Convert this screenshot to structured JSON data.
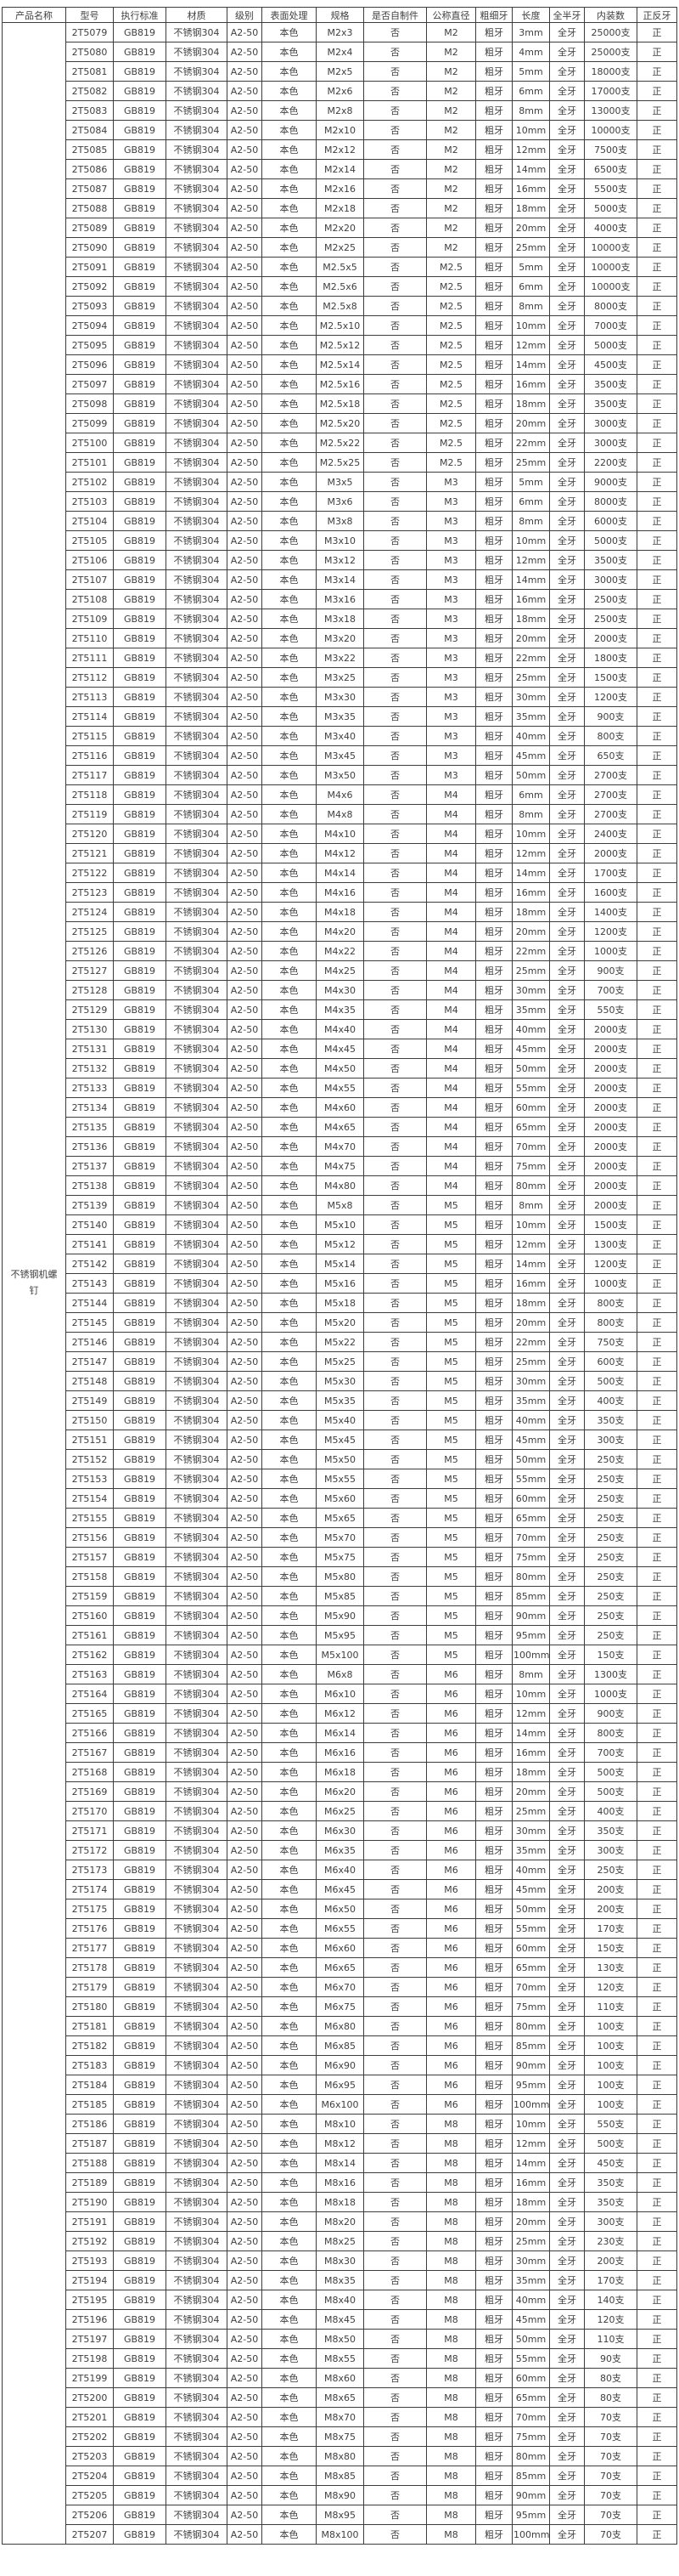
{
  "table": {
    "product_name": "不锈钢机螺钉",
    "headers": [
      "产品名称",
      "型号",
      "执行标准",
      "材质",
      "级别",
      "表面处理",
      "规格",
      "是否自制件",
      "公称直径",
      "粗细牙",
      "长度",
      "全半牙",
      "内装数",
      "正反牙"
    ],
    "constants": {
      "standard": "GB819",
      "material": "不锈钢304",
      "grade": "A2-50",
      "surface": "本色",
      "self_tapping": "否",
      "thread_pitch": "粗牙",
      "thread_coverage": "全牙",
      "direction": "正"
    },
    "rows": [
      [
        "2T5079",
        "M2x3",
        "M2",
        "3mm",
        "25000支"
      ],
      [
        "2T5080",
        "M2x4",
        "M2",
        "4mm",
        "25000支"
      ],
      [
        "2T5081",
        "M2x5",
        "M2",
        "5mm",
        "18000支"
      ],
      [
        "2T5082",
        "M2x6",
        "M2",
        "6mm",
        "17000支"
      ],
      [
        "2T5083",
        "M2x8",
        "M2",
        "8mm",
        "13000支"
      ],
      [
        "2T5084",
        "M2x10",
        "M2",
        "10mm",
        "10000支"
      ],
      [
        "2T5085",
        "M2x12",
        "M2",
        "12mm",
        "7500支"
      ],
      [
        "2T5086",
        "M2x14",
        "M2",
        "14mm",
        "6500支"
      ],
      [
        "2T5087",
        "M2x16",
        "M2",
        "16mm",
        "5500支"
      ],
      [
        "2T5088",
        "M2x18",
        "M2",
        "18mm",
        "5000支"
      ],
      [
        "2T5089",
        "M2x20",
        "M2",
        "20mm",
        "4000支"
      ],
      [
        "2T5090",
        "M2x25",
        "M2",
        "25mm",
        "10000支"
      ],
      [
        "2T5091",
        "M2.5x5",
        "M2.5",
        "5mm",
        "10000支"
      ],
      [
        "2T5092",
        "M2.5x6",
        "M2.5",
        "6mm",
        "10000支"
      ],
      [
        "2T5093",
        "M2.5x8",
        "M2.5",
        "8mm",
        "8000支"
      ],
      [
        "2T5094",
        "M2.5x10",
        "M2.5",
        "10mm",
        "7000支"
      ],
      [
        "2T5095",
        "M2.5x12",
        "M2.5",
        "12mm",
        "5000支"
      ],
      [
        "2T5096",
        "M2.5x14",
        "M2.5",
        "14mm",
        "4500支"
      ],
      [
        "2T5097",
        "M2.5x16",
        "M2.5",
        "16mm",
        "3500支"
      ],
      [
        "2T5098",
        "M2.5x18",
        "M2.5",
        "18mm",
        "3500支"
      ],
      [
        "2T5099",
        "M2.5x20",
        "M2.5",
        "20mm",
        "3000支"
      ],
      [
        "2T5100",
        "M2.5x22",
        "M2.5",
        "22mm",
        "3000支"
      ],
      [
        "2T5101",
        "M2.5x25",
        "M2.5",
        "25mm",
        "2200支"
      ],
      [
        "2T5102",
        "M3x5",
        "M3",
        "5mm",
        "9000支"
      ],
      [
        "2T5103",
        "M3x6",
        "M3",
        "6mm",
        "8000支"
      ],
      [
        "2T5104",
        "M3x8",
        "M3",
        "8mm",
        "6000支"
      ],
      [
        "2T5105",
        "M3x10",
        "M3",
        "10mm",
        "5000支"
      ],
      [
        "2T5106",
        "M3x12",
        "M3",
        "12mm",
        "3500支"
      ],
      [
        "2T5107",
        "M3x14",
        "M3",
        "14mm",
        "3000支"
      ],
      [
        "2T5108",
        "M3x16",
        "M3",
        "16mm",
        "2500支"
      ],
      [
        "2T5109",
        "M3x18",
        "M3",
        "18mm",
        "2500支"
      ],
      [
        "2T5110",
        "M3x20",
        "M3",
        "20mm",
        "2000支"
      ],
      [
        "2T5111",
        "M3x22",
        "M3",
        "22mm",
        "1800支"
      ],
      [
        "2T5112",
        "M3x25",
        "M3",
        "25mm",
        "1500支"
      ],
      [
        "2T5113",
        "M3x30",
        "M3",
        "30mm",
        "1200支"
      ],
      [
        "2T5114",
        "M3x35",
        "M3",
        "35mm",
        "900支"
      ],
      [
        "2T5115",
        "M3x40",
        "M3",
        "40mm",
        "800支"
      ],
      [
        "2T5116",
        "M3x45",
        "M3",
        "45mm",
        "650支"
      ],
      [
        "2T5117",
        "M3x50",
        "M3",
        "50mm",
        "2700支"
      ],
      [
        "2T5118",
        "M4x6",
        "M4",
        "6mm",
        "2700支"
      ],
      [
        "2T5119",
        "M4x8",
        "M4",
        "8mm",
        "2700支"
      ],
      [
        "2T5120",
        "M4x10",
        "M4",
        "10mm",
        "2400支"
      ],
      [
        "2T5121",
        "M4x12",
        "M4",
        "12mm",
        "2000支"
      ],
      [
        "2T5122",
        "M4x14",
        "M4",
        "14mm",
        "1700支"
      ],
      [
        "2T5123",
        "M4x16",
        "M4",
        "16mm",
        "1600支"
      ],
      [
        "2T5124",
        "M4x18",
        "M4",
        "18mm",
        "1400支"
      ],
      [
        "2T5125",
        "M4x20",
        "M4",
        "20mm",
        "1200支"
      ],
      [
        "2T5126",
        "M4x22",
        "M4",
        "22mm",
        "1000支"
      ],
      [
        "2T5127",
        "M4x25",
        "M4",
        "25mm",
        "900支"
      ],
      [
        "2T5128",
        "M4x30",
        "M4",
        "30mm",
        "700支"
      ],
      [
        "2T5129",
        "M4x35",
        "M4",
        "35mm",
        "550支"
      ],
      [
        "2T5130",
        "M4x40",
        "M4",
        "40mm",
        "2000支"
      ],
      [
        "2T5131",
        "M4x45",
        "M4",
        "45mm",
        "2000支"
      ],
      [
        "2T5132",
        "M4x50",
        "M4",
        "50mm",
        "2000支"
      ],
      [
        "2T5133",
        "M4x55",
        "M4",
        "55mm",
        "2000支"
      ],
      [
        "2T5134",
        "M4x60",
        "M4",
        "60mm",
        "2000支"
      ],
      [
        "2T5135",
        "M4x65",
        "M4",
        "65mm",
        "2000支"
      ],
      [
        "2T5136",
        "M4x70",
        "M4",
        "70mm",
        "2000支"
      ],
      [
        "2T5137",
        "M4x75",
        "M4",
        "75mm",
        "2000支"
      ],
      [
        "2T5138",
        "M4x80",
        "M4",
        "80mm",
        "2000支"
      ],
      [
        "2T5139",
        "M5x8",
        "M5",
        "8mm",
        "2000支"
      ],
      [
        "2T5140",
        "M5x10",
        "M5",
        "10mm",
        "1500支"
      ],
      [
        "2T5141",
        "M5x12",
        "M5",
        "12mm",
        "1300支"
      ],
      [
        "2T5142",
        "M5x14",
        "M5",
        "14mm",
        "1200支"
      ],
      [
        "2T5143",
        "M5x16",
        "M5",
        "16mm",
        "1000支"
      ],
      [
        "2T5144",
        "M5x18",
        "M5",
        "18mm",
        "800支"
      ],
      [
        "2T5145",
        "M5x20",
        "M5",
        "20mm",
        "800支"
      ],
      [
        "2T5146",
        "M5x22",
        "M5",
        "22mm",
        "750支"
      ],
      [
        "2T5147",
        "M5x25",
        "M5",
        "25mm",
        "600支"
      ],
      [
        "2T5148",
        "M5x30",
        "M5",
        "30mm",
        "500支"
      ],
      [
        "2T5149",
        "M5x35",
        "M5",
        "35mm",
        "400支"
      ],
      [
        "2T5150",
        "M5x40",
        "M5",
        "40mm",
        "350支"
      ],
      [
        "2T5151",
        "M5x45",
        "M5",
        "45mm",
        "300支"
      ],
      [
        "2T5152",
        "M5x50",
        "M5",
        "50mm",
        "250支"
      ],
      [
        "2T5153",
        "M5x55",
        "M5",
        "55mm",
        "250支"
      ],
      [
        "2T5154",
        "M5x60",
        "M5",
        "60mm",
        "250支"
      ],
      [
        "2T5155",
        "M5x65",
        "M5",
        "65mm",
        "250支"
      ],
      [
        "2T5156",
        "M5x70",
        "M5",
        "70mm",
        "250支"
      ],
      [
        "2T5157",
        "M5x75",
        "M5",
        "75mm",
        "250支"
      ],
      [
        "2T5158",
        "M5x80",
        "M5",
        "80mm",
        "250支"
      ],
      [
        "2T5159",
        "M5x85",
        "M5",
        "85mm",
        "250支"
      ],
      [
        "2T5160",
        "M5x90",
        "M5",
        "90mm",
        "250支"
      ],
      [
        "2T5161",
        "M5x95",
        "M5",
        "95mm",
        "250支"
      ],
      [
        "2T5162",
        "M5x100",
        "M5",
        "100mm",
        "150支"
      ],
      [
        "2T5163",
        "M6x8",
        "M6",
        "8mm",
        "1300支"
      ],
      [
        "2T5164",
        "M6x10",
        "M6",
        "10mm",
        "1000支"
      ],
      [
        "2T5165",
        "M6x12",
        "M6",
        "12mm",
        "900支"
      ],
      [
        "2T5166",
        "M6x14",
        "M6",
        "14mm",
        "800支"
      ],
      [
        "2T5167",
        "M6x16",
        "M6",
        "16mm",
        "700支"
      ],
      [
        "2T5168",
        "M6x18",
        "M6",
        "18mm",
        "500支"
      ],
      [
        "2T5169",
        "M6x20",
        "M6",
        "20mm",
        "500支"
      ],
      [
        "2T5170",
        "M6x25",
        "M6",
        "25mm",
        "400支"
      ],
      [
        "2T5171",
        "M6x30",
        "M6",
        "30mm",
        "350支"
      ],
      [
        "2T5172",
        "M6x35",
        "M6",
        "35mm",
        "300支"
      ],
      [
        "2T5173",
        "M6x40",
        "M6",
        "40mm",
        "250支"
      ],
      [
        "2T5174",
        "M6x45",
        "M6",
        "45mm",
        "200支"
      ],
      [
        "2T5175",
        "M6x50",
        "M6",
        "50mm",
        "200支"
      ],
      [
        "2T5176",
        "M6x55",
        "M6",
        "55mm",
        "170支"
      ],
      [
        "2T5177",
        "M6x60",
        "M6",
        "60mm",
        "150支"
      ],
      [
        "2T5178",
        "M6x65",
        "M6",
        "65mm",
        "130支"
      ],
      [
        "2T5179",
        "M6x70",
        "M6",
        "70mm",
        "120支"
      ],
      [
        "2T5180",
        "M6x75",
        "M6",
        "75mm",
        "110支"
      ],
      [
        "2T5181",
        "M6x80",
        "M6",
        "80mm",
        "100支"
      ],
      [
        "2T5182",
        "M6x85",
        "M6",
        "85mm",
        "100支"
      ],
      [
        "2T5183",
        "M6x90",
        "M6",
        "90mm",
        "100支"
      ],
      [
        "2T5184",
        "M6x95",
        "M6",
        "95mm",
        "100支"
      ],
      [
        "2T5185",
        "M6x100",
        "M6",
        "100mm",
        "100支"
      ],
      [
        "2T5186",
        "M8x10",
        "M8",
        "10mm",
        "550支"
      ],
      [
        "2T5187",
        "M8x12",
        "M8",
        "12mm",
        "500支"
      ],
      [
        "2T5188",
        "M8x14",
        "M8",
        "14mm",
        "450支"
      ],
      [
        "2T5189",
        "M8x16",
        "M8",
        "16mm",
        "350支"
      ],
      [
        "2T5190",
        "M8x18",
        "M8",
        "18mm",
        "350支"
      ],
      [
        "2T5191",
        "M8x20",
        "M8",
        "20mm",
        "300支"
      ],
      [
        "2T5192",
        "M8x25",
        "M8",
        "25mm",
        "230支"
      ],
      [
        "2T5193",
        "M8x30",
        "M8",
        "30mm",
        "200支"
      ],
      [
        "2T5194",
        "M8x35",
        "M8",
        "35mm",
        "170支"
      ],
      [
        "2T5195",
        "M8x40",
        "M8",
        "40mm",
        "140支"
      ],
      [
        "2T5196",
        "M8x45",
        "M8",
        "45mm",
        "120支"
      ],
      [
        "2T5197",
        "M8x50",
        "M8",
        "50mm",
        "110支"
      ],
      [
        "2T5198",
        "M8x55",
        "M8",
        "55mm",
        "90支"
      ],
      [
        "2T5199",
        "M8x60",
        "M8",
        "60mm",
        "80支"
      ],
      [
        "2T5200",
        "M8x65",
        "M8",
        "65mm",
        "80支"
      ],
      [
        "2T5201",
        "M8x70",
        "M8",
        "70mm",
        "70支"
      ],
      [
        "2T5202",
        "M8x75",
        "M8",
        "75mm",
        "70支"
      ],
      [
        "2T5203",
        "M8x80",
        "M8",
        "80mm",
        "70支"
      ],
      [
        "2T5204",
        "M8x85",
        "M8",
        "85mm",
        "70支"
      ],
      [
        "2T5205",
        "M8x90",
        "M8",
        "90mm",
        "70支"
      ],
      [
        "2T5206",
        "M8x95",
        "M8",
        "95mm",
        "70支"
      ],
      [
        "2T5207",
        "M8x100",
        "M8",
        "100mm",
        "70支"
      ]
    ]
  }
}
